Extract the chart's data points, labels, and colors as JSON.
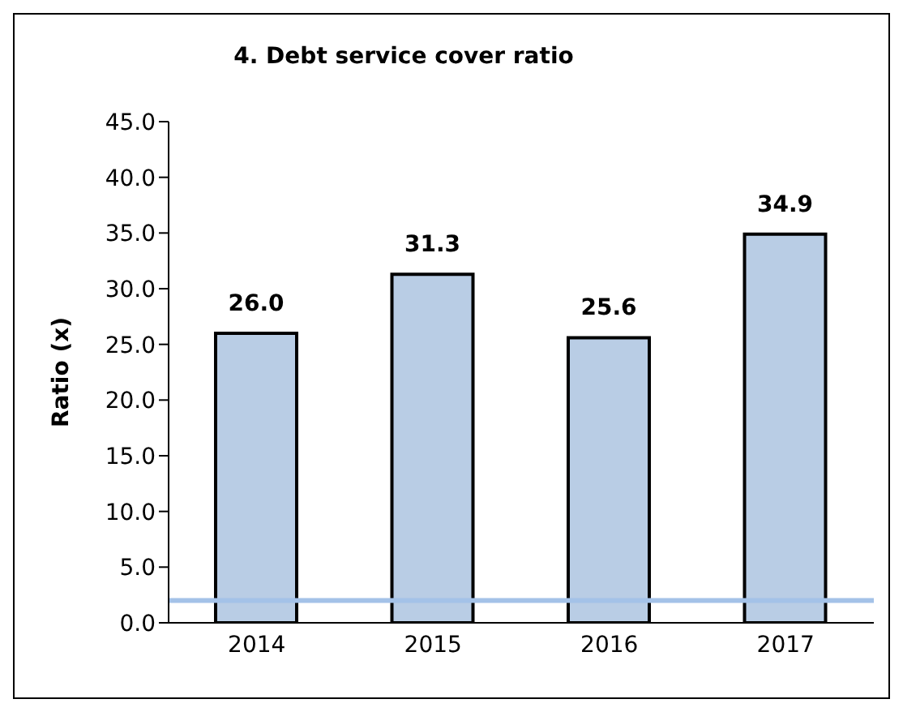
{
  "chart_data": {
    "type": "bar",
    "title": "4. Debt service cover ratio",
    "ylabel": "Ratio (x)",
    "categories": [
      "2014",
      "2015",
      "2016",
      "2017"
    ],
    "values": [
      26.0,
      31.3,
      25.6,
      34.9
    ],
    "color": "#b9cde5",
    "ylim": [
      0,
      45
    ],
    "yticks": [
      {
        "value": 0,
        "label": "0.0"
      },
      {
        "value": 5,
        "label": "5.0"
      },
      {
        "value": 10,
        "label": "10.0"
      },
      {
        "value": 15,
        "label": "15.0"
      },
      {
        "value": 20,
        "label": "20.0"
      },
      {
        "value": 25,
        "label": "25.0"
      },
      {
        "value": 30,
        "label": "30.0"
      },
      {
        "value": 35,
        "label": "35.0"
      },
      {
        "value": 40,
        "label": "40.0"
      },
      {
        "value": 45,
        "label": "45.0"
      }
    ],
    "value_labels": [
      "26.0",
      "31.3",
      "25.6",
      "34.9"
    ],
    "grid": false,
    "legend": false,
    "ref_lines": [
      {
        "axis": "y",
        "value": 2.0,
        "label": null,
        "color": "#a4c2e8"
      }
    ]
  }
}
